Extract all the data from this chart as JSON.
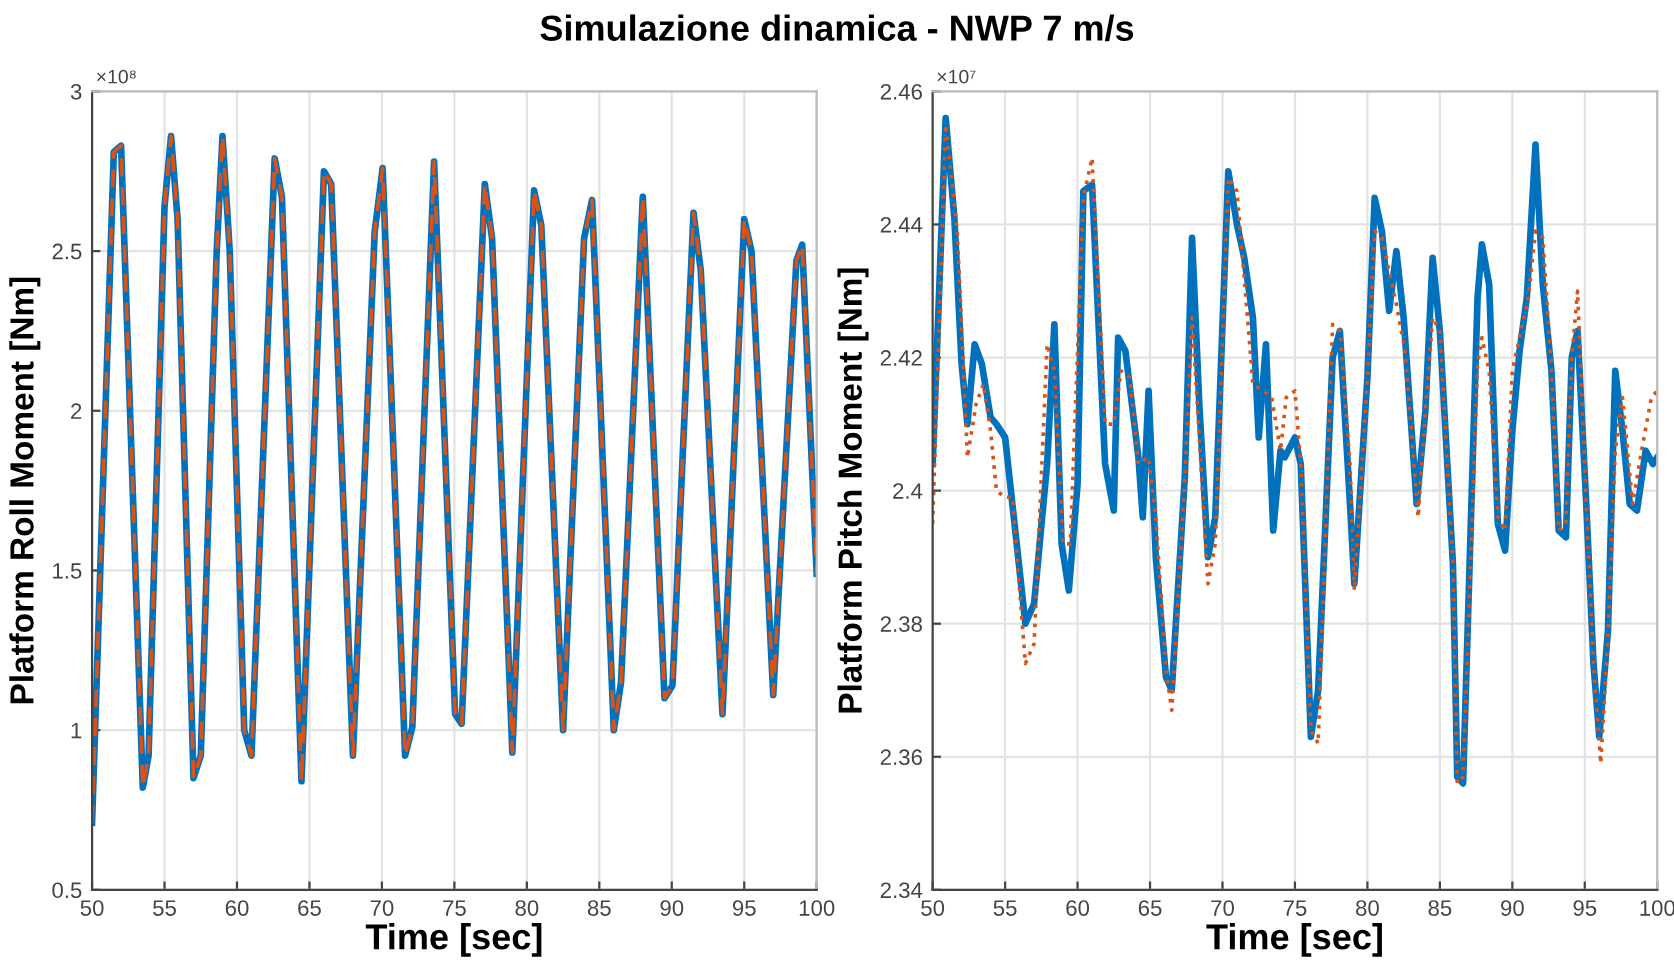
{
  "chart_data": [
    {
      "type": "line",
      "title": "Simulazione dinamica - NWP 7 m/s",
      "xlabel": "Time [sec]",
      "ylabel": "Platform Roll Moment [Nm]",
      "annotations": [
        "×10⁸"
      ],
      "xlim": [
        50,
        100
      ],
      "xticks": [
        50,
        55,
        60,
        65,
        70,
        75,
        80,
        85,
        90,
        95,
        100
      ],
      "ylim": [
        0.5,
        3
      ],
      "yticks": [
        0.5,
        1,
        1.5,
        2,
        2.5,
        3
      ],
      "grid": true,
      "x": [
        50,
        51.5,
        52.0,
        53.5,
        53.9,
        55.0,
        55.45,
        55.9,
        57.0,
        57.5,
        58.6,
        59.0,
        59.5,
        60.5,
        61.0,
        62.6,
        63.1,
        64.45,
        66.0,
        66.5,
        68.0,
        69.5,
        70.05,
        71.6,
        72.1,
        73.6,
        75.05,
        75.5,
        77.1,
        77.6,
        79.0,
        80.5,
        81.0,
        82.5,
        83.95,
        84.5,
        86.0,
        86.5,
        88.0,
        89.5,
        90.05,
        91.5,
        92.0,
        93.5,
        95.0,
        95.5,
        97.0,
        98.6,
        99.0,
        100
      ],
      "series": [
        {
          "color": "#0072bd",
          "line_style": "solid",
          "values": [
            0.71,
            2.81,
            2.83,
            0.82,
            0.92,
            2.64,
            2.86,
            2.6,
            0.85,
            0.92,
            2.5,
            2.86,
            2.5,
            1.0,
            0.92,
            2.79,
            2.67,
            0.84,
            2.75,
            2.71,
            0.92,
            2.56,
            2.76,
            0.92,
            1.01,
            2.78,
            1.05,
            1.02,
            2.71,
            2.54,
            0.93,
            2.69,
            2.58,
            1.0,
            2.54,
            2.66,
            1.0,
            1.15,
            2.67,
            1.1,
            1.14,
            2.62,
            2.44,
            1.05,
            2.6,
            2.5,
            1.11,
            2.47,
            2.52,
            1.49
          ]
        },
        {
          "color": "#d95319",
          "line_style": "dashed",
          "values": [
            0.71,
            2.81,
            2.83,
            0.82,
            0.92,
            2.64,
            2.86,
            2.6,
            0.85,
            0.92,
            2.5,
            2.86,
            2.5,
            1.0,
            0.92,
            2.79,
            2.67,
            0.84,
            2.75,
            2.71,
            0.92,
            2.56,
            2.76,
            0.92,
            1.01,
            2.78,
            1.05,
            1.02,
            2.71,
            2.54,
            0.93,
            2.69,
            2.58,
            1.0,
            2.54,
            2.66,
            1.0,
            1.15,
            2.67,
            1.1,
            1.14,
            2.62,
            2.44,
            1.05,
            2.6,
            2.5,
            1.11,
            2.47,
            2.52,
            1.49
          ]
        }
      ]
    },
    {
      "type": "line",
      "xlabel": "Time [sec]",
      "ylabel": "Platform Pitch Moment [Nm]",
      "annotations": [
        "×10⁷"
      ],
      "xlim": [
        50,
        100
      ],
      "xticks": [
        50,
        55,
        60,
        65,
        70,
        75,
        80,
        85,
        90,
        95,
        100
      ],
      "ylim": [
        2.34,
        2.46
      ],
      "yticks": [
        2.34,
        2.36,
        2.38,
        2.4,
        2.42,
        2.44,
        2.46
      ],
      "grid": true,
      "series": [
        {
          "color": "#0072bd",
          "line_style": "solid",
          "x": [
            50,
            50.9,
            51.5,
            52.0,
            52.4,
            52.9,
            53.4,
            54.0,
            54.4,
            55.0,
            56.4,
            57.0,
            57.9,
            58.4,
            58.9,
            59.4,
            60.0,
            60.4,
            61.0,
            61.9,
            62.5,
            62.8,
            63.3,
            64.2,
            64.5,
            64.9,
            65.4,
            66.1,
            66.5,
            67.4,
            67.9,
            68.4,
            69.0,
            69.5,
            70.4,
            71.0,
            71.5,
            72.1,
            72.5,
            73.0,
            73.5,
            74.0,
            74.3,
            75.0,
            75.4,
            76.1,
            76.6,
            77.6,
            78.1,
            78.8,
            79.1,
            80.0,
            80.5,
            81.0,
            81.5,
            82.0,
            82.5,
            83.4,
            84.0,
            84.5,
            85.0,
            85.9,
            86.2,
            86.6,
            87.6,
            87.9,
            88.4,
            89.0,
            89.5,
            90.0,
            90.5,
            91.0,
            91.6,
            92.1,
            92.7,
            93.2,
            93.7,
            94.1,
            94.5,
            95.1,
            95.6,
            96.0,
            96.6,
            97.1,
            97.6,
            98.1,
            98.6,
            99.2,
            99.7,
            100
          ],
          "values": [
            2.404,
            2.456,
            2.441,
            2.419,
            2.41,
            2.422,
            2.419,
            2.411,
            2.41,
            2.408,
            2.38,
            2.383,
            2.404,
            2.425,
            2.392,
            2.385,
            2.401,
            2.445,
            2.446,
            2.404,
            2.397,
            2.423,
            2.421,
            2.405,
            2.396,
            2.415,
            2.39,
            2.372,
            2.37,
            2.402,
            2.438,
            2.413,
            2.39,
            2.396,
            2.448,
            2.44,
            2.435,
            2.426,
            2.408,
            2.422,
            2.394,
            2.406,
            2.405,
            2.408,
            2.404,
            2.363,
            2.37,
            2.42,
            2.424,
            2.398,
            2.386,
            2.417,
            2.444,
            2.439,
            2.427,
            2.436,
            2.426,
            2.398,
            2.412,
            2.435,
            2.424,
            2.389,
            2.357,
            2.356,
            2.429,
            2.437,
            2.431,
            2.395,
            2.391,
            2.409,
            2.421,
            2.429,
            2.452,
            2.431,
            2.418,
            2.394,
            2.393,
            2.42,
            2.424,
            2.398,
            2.374,
            2.363,
            2.379,
            2.418,
            2.409,
            2.398,
            2.397,
            2.406,
            2.404,
            2.405
          ]
        },
        {
          "color": "#d95319",
          "line_style": "dotted",
          "x": [
            50,
            50.9,
            51.7,
            52.4,
            53.0,
            53.5,
            54.0,
            54.4,
            55.0,
            55.5,
            56.4,
            57.0,
            57.9,
            58.4,
            59.0,
            59.5,
            60.4,
            61.0,
            61.9,
            62.5,
            63.0,
            63.6,
            64.2,
            64.9,
            65.4,
            66.1,
            66.5,
            67.4,
            67.9,
            68.4,
            69.0,
            69.5,
            70.4,
            71.0,
            71.5,
            72.1,
            72.8,
            73.4,
            74.0,
            74.4,
            75.0,
            75.4,
            76.1,
            76.6,
            77.6,
            78.1,
            78.8,
            79.1,
            80.0,
            80.5,
            81.0,
            82.0,
            82.6,
            83.5,
            84.0,
            84.5,
            85.0,
            85.9,
            86.2,
            86.6,
            87.6,
            87.9,
            88.4,
            89.0,
            89.5,
            90.0,
            91.1,
            91.6,
            92.1,
            92.7,
            93.2,
            93.7,
            94.1,
            94.5,
            95.1,
            95.6,
            96.1,
            96.6,
            97.1,
            97.6,
            98.3,
            99.0,
            99.6,
            100
          ],
          "values": [
            2.395,
            2.455,
            2.439,
            2.405,
            2.413,
            2.416,
            2.409,
            2.4,
            2.399,
            2.399,
            2.374,
            2.377,
            2.422,
            2.418,
            2.392,
            2.392,
            2.444,
            2.45,
            2.41,
            2.41,
            2.418,
            2.417,
            2.404,
            2.405,
            2.396,
            2.373,
            2.367,
            2.402,
            2.426,
            2.408,
            2.386,
            2.392,
            2.447,
            2.445,
            2.432,
            2.416,
            2.415,
            2.414,
            2.406,
            2.414,
            2.415,
            2.404,
            2.364,
            2.362,
            2.425,
            2.424,
            2.404,
            2.385,
            2.417,
            2.439,
            2.438,
            2.428,
            2.421,
            2.396,
            2.412,
            2.426,
            2.424,
            2.389,
            2.356,
            2.357,
            2.419,
            2.423,
            2.418,
            2.396,
            2.394,
            2.418,
            2.429,
            2.439,
            2.438,
            2.418,
            2.394,
            2.395,
            2.42,
            2.43,
            2.398,
            2.374,
            2.359,
            2.378,
            2.406,
            2.414,
            2.398,
            2.407,
            2.414,
            2.415
          ]
        }
      ]
    }
  ]
}
